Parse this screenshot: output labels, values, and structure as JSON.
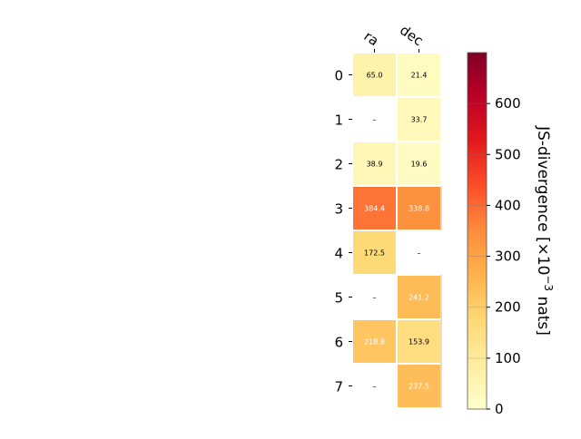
{
  "chart_data": {
    "type": "heatmap",
    "title": "",
    "xlabel": "",
    "ylabel": "",
    "columns": [
      "ra",
      "dec"
    ],
    "rows": [
      "0",
      "1",
      "2",
      "3",
      "4",
      "5",
      "6",
      "7"
    ],
    "values": [
      [
        65.0,
        21.4
      ],
      [
        null,
        33.7
      ],
      [
        38.9,
        19.6
      ],
      [
        384.4,
        338.8
      ],
      [
        172.5,
        null
      ],
      [
        null,
        241.2
      ],
      [
        218.8,
        153.9
      ],
      [
        null,
        237.5
      ]
    ],
    "cell_labels": [
      [
        "65.0",
        "21.4"
      ],
      [
        "–",
        "33.7"
      ],
      [
        "38.9",
        "19.6"
      ],
      [
        "384.4",
        "338.8"
      ],
      [
        "172.5",
        "–"
      ],
      [
        "–",
        "241.2"
      ],
      [
        "218.8",
        "153.9"
      ],
      [
        "–",
        "237.5"
      ]
    ],
    "colorbar": {
      "label": "JS-divergence [×10⁻³ nats]",
      "label_main": "JS-divergence [×10",
      "label_exp": "−3",
      "label_tail": " nats]",
      "min": 0,
      "max": 700,
      "ticks": [
        "0",
        "100",
        "200",
        "300",
        "400",
        "500",
        "600"
      ],
      "colormap": "YlOrRd"
    },
    "grid": false,
    "legend": "none"
  }
}
